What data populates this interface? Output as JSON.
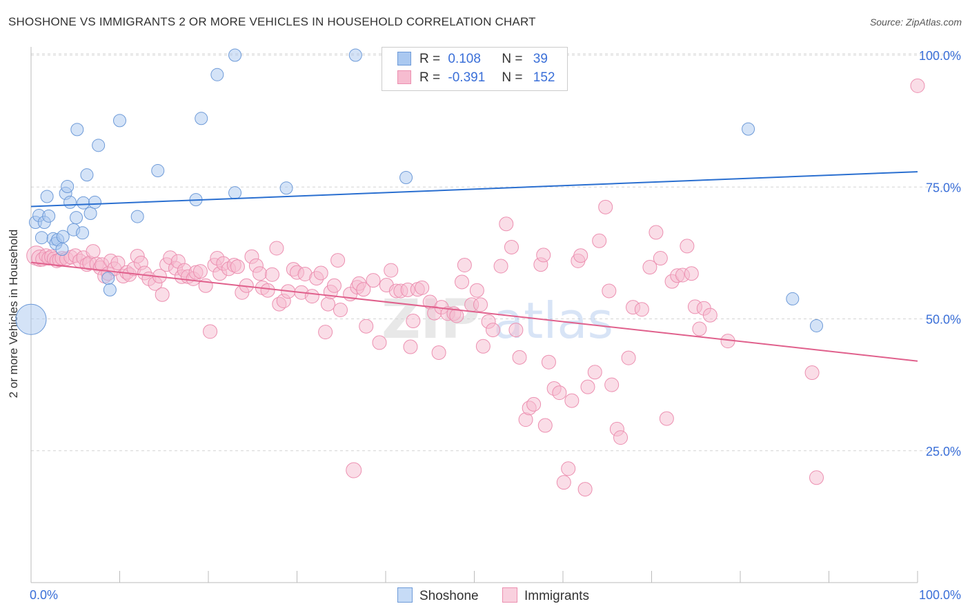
{
  "title": "SHOSHONE VS IMMIGRANTS 2 OR MORE VEHICLES IN HOUSEHOLD CORRELATION CHART",
  "source": "Source: ZipAtlas.com",
  "legend": {
    "r_label": "R =",
    "n_label": "N =",
    "shoshone": {
      "r": "0.108",
      "n": "39"
    },
    "immigrants": {
      "r": "-0.391",
      "n": "152"
    }
  },
  "bottom_legend": {
    "shoshone": "Shoshone",
    "immigrants": "Immigrants"
  },
  "watermark": {
    "zip": "ZIP",
    "atlas": "atlas"
  },
  "chart_data": {
    "type": "scatter",
    "title": "SHOSHONE VS IMMIGRANTS 2 OR MORE VEHICLES IN HOUSEHOLD CORRELATION CHART",
    "xlabel": "",
    "ylabel": "2 or more Vehicles in Household",
    "xlim": [
      0,
      100
    ],
    "ylim": [
      0,
      102.5
    ],
    "x_tick_labels": [
      "0.0%",
      "100.0%"
    ],
    "y_ticks": [
      25,
      50,
      75,
      100
    ],
    "y_tick_labels": [
      "25.0%",
      "50.0%",
      "75.0%",
      "100.0%"
    ],
    "grid": "dashed horizontal",
    "legend_position": "top-center",
    "colors": {
      "shoshone_fill": "#aac8f0",
      "shoshone_stroke": "#6d9ad8",
      "shoshone_line": "#2a6fd0",
      "immigrants_fill": "#f6bcd0",
      "immigrants_stroke": "#ec8fb0",
      "immigrants_line": "#e0608c",
      "tick_label": "#3a6fd8"
    },
    "series": [
      {
        "name": "Shoshone",
        "trend": [
          [
            0,
            71.3
          ],
          [
            100,
            77.9
          ]
        ],
        "points": [
          [
            0.0,
            49.9,
            22
          ],
          [
            0.5,
            68.3,
            9
          ],
          [
            0.9,
            69.6,
            9
          ],
          [
            1.2,
            65.4,
            9
          ],
          [
            1.5,
            68.3,
            9
          ],
          [
            1.8,
            73.2,
            9
          ],
          [
            2.0,
            69.5,
            9
          ],
          [
            2.5,
            65.2,
            9
          ],
          [
            2.8,
            64.3,
            9
          ],
          [
            3.0,
            65.0,
            9
          ],
          [
            3.5,
            63.2,
            9
          ],
          [
            3.6,
            65.6,
            9
          ],
          [
            3.9,
            73.8,
            9
          ],
          [
            4.1,
            75.1,
            9
          ],
          [
            4.4,
            72.1,
            9
          ],
          [
            4.8,
            66.9,
            9
          ],
          [
            5.1,
            69.2,
            9
          ],
          [
            5.2,
            85.9,
            9
          ],
          [
            5.8,
            66.3,
            9
          ],
          [
            5.9,
            72.0,
            9
          ],
          [
            6.3,
            77.3,
            9
          ],
          [
            6.7,
            70.0,
            9
          ],
          [
            7.2,
            72.1,
            9
          ],
          [
            7.6,
            82.9,
            9
          ],
          [
            8.7,
            57.7,
            9
          ],
          [
            8.9,
            55.5,
            9
          ],
          [
            10.0,
            87.6,
            9
          ],
          [
            12.0,
            69.4,
            9
          ],
          [
            14.3,
            78.1,
            9
          ],
          [
            18.6,
            72.6,
            9
          ],
          [
            19.2,
            88.0,
            9
          ],
          [
            21.0,
            96.3,
            9
          ],
          [
            23.0,
            100.0,
            9
          ],
          [
            23.0,
            73.9,
            9
          ],
          [
            28.8,
            74.8,
            9
          ],
          [
            36.6,
            100.0,
            9
          ],
          [
            42.3,
            76.8,
            9
          ],
          [
            80.9,
            86.0,
            9
          ],
          [
            85.9,
            53.8,
            9
          ],
          [
            88.6,
            48.7,
            9
          ]
        ]
      },
      {
        "name": "Immigrants",
        "trend": [
          [
            0,
            60.7
          ],
          [
            100,
            42.0
          ]
        ],
        "points": [
          [
            0.6,
            62.0,
            14
          ],
          [
            1.0,
            61.5,
            12
          ],
          [
            1.3,
            61.3,
            10
          ],
          [
            1.7,
            62.0,
            10
          ],
          [
            2.0,
            61.5,
            10
          ],
          [
            2.3,
            61.8,
            10
          ],
          [
            2.6,
            61.4,
            10
          ],
          [
            2.9,
            61.0,
            10
          ],
          [
            3.2,
            61.2,
            10
          ],
          [
            3.5,
            61.5,
            10
          ],
          [
            4.0,
            61.4,
            10
          ],
          [
            4.5,
            61.7,
            10
          ],
          [
            5.0,
            62.0,
            10
          ],
          [
            5.5,
            61.0,
            10
          ],
          [
            5.9,
            61.6,
            10
          ],
          [
            6.3,
            60.3,
            10
          ],
          [
            6.6,
            60.6,
            10
          ],
          [
            7.0,
            62.8,
            10
          ],
          [
            7.4,
            60.4,
            10
          ],
          [
            7.8,
            59.7,
            10
          ],
          [
            8.0,
            60.3,
            10
          ],
          [
            8.3,
            58.1,
            10
          ],
          [
            8.7,
            58.6,
            10
          ],
          [
            9.0,
            61.0,
            10
          ],
          [
            9.4,
            59.5,
            10
          ],
          [
            9.8,
            60.6,
            10
          ],
          [
            10.4,
            58.1,
            10
          ],
          [
            10.8,
            58.8,
            10
          ],
          [
            11.1,
            58.4,
            10
          ],
          [
            11.6,
            59.5,
            10
          ],
          [
            12.0,
            61.9,
            10
          ],
          [
            12.4,
            60.6,
            10
          ],
          [
            12.8,
            58.7,
            10
          ],
          [
            13.3,
            57.6,
            10
          ],
          [
            14.0,
            56.7,
            10
          ],
          [
            14.5,
            58.1,
            10
          ],
          [
            14.8,
            54.6,
            10
          ],
          [
            15.3,
            60.3,
            10
          ],
          [
            15.7,
            61.6,
            10
          ],
          [
            16.3,
            59.6,
            10
          ],
          [
            16.6,
            60.9,
            10
          ],
          [
            17.0,
            58.0,
            10
          ],
          [
            17.3,
            59.2,
            10
          ],
          [
            17.7,
            58.0,
            10
          ],
          [
            18.3,
            57.6,
            10
          ],
          [
            18.6,
            58.8,
            10
          ],
          [
            19.1,
            59.0,
            10
          ],
          [
            19.7,
            56.3,
            10
          ],
          [
            20.2,
            47.6,
            10
          ],
          [
            20.7,
            60.2,
            10
          ],
          [
            21.0,
            61.5,
            10
          ],
          [
            21.3,
            58.6,
            10
          ],
          [
            21.7,
            60.5,
            10
          ],
          [
            22.3,
            59.5,
            10
          ],
          [
            22.9,
            60.2,
            10
          ],
          [
            23.3,
            59.9,
            10
          ],
          [
            23.8,
            55.0,
            10
          ],
          [
            24.3,
            56.3,
            10
          ],
          [
            24.9,
            61.8,
            10
          ],
          [
            25.4,
            60.1,
            10
          ],
          [
            25.8,
            58.6,
            10
          ],
          [
            26.1,
            55.9,
            10
          ],
          [
            26.7,
            55.4,
            10
          ],
          [
            27.2,
            58.4,
            10
          ],
          [
            27.7,
            63.4,
            10
          ],
          [
            28.0,
            52.8,
            10
          ],
          [
            28.5,
            53.4,
            10
          ],
          [
            29.0,
            55.2,
            10
          ],
          [
            29.6,
            59.4,
            10
          ],
          [
            30.0,
            58.8,
            10
          ],
          [
            30.5,
            55.0,
            10
          ],
          [
            30.9,
            58.5,
            10
          ],
          [
            31.7,
            54.3,
            10
          ],
          [
            32.2,
            57.7,
            10
          ],
          [
            32.7,
            58.7,
            10
          ],
          [
            33.2,
            47.5,
            10
          ],
          [
            33.5,
            52.8,
            10
          ],
          [
            33.8,
            55.1,
            10
          ],
          [
            34.2,
            56.3,
            10
          ],
          [
            34.6,
            61.1,
            10
          ],
          [
            34.9,
            51.7,
            10
          ],
          [
            36.0,
            54.7,
            10
          ],
          [
            36.8,
            56.0,
            10
          ],
          [
            37.0,
            56.7,
            10
          ],
          [
            37.5,
            55.6,
            10
          ],
          [
            37.8,
            48.6,
            10
          ],
          [
            38.6,
            57.3,
            10
          ],
          [
            39.3,
            45.5,
            10
          ],
          [
            40.1,
            56.4,
            10
          ],
          [
            40.6,
            59.2,
            10
          ],
          [
            41.2,
            55.3,
            10
          ],
          [
            41.7,
            55.3,
            10
          ],
          [
            42.5,
            55.5,
            10
          ],
          [
            42.8,
            44.7,
            10
          ],
          [
            43.1,
            49.6,
            10
          ],
          [
            43.6,
            55.6,
            10
          ],
          [
            44.1,
            55.9,
            10
          ],
          [
            45.0,
            53.2,
            10
          ],
          [
            45.5,
            51.1,
            10
          ],
          [
            46.0,
            43.6,
            10
          ],
          [
            46.3,
            52.2,
            10
          ],
          [
            47.0,
            51.0,
            10
          ],
          [
            47.7,
            51.0,
            10
          ],
          [
            48.0,
            50.6,
            10
          ],
          [
            48.6,
            57.0,
            10
          ],
          [
            48.9,
            60.2,
            10
          ],
          [
            49.7,
            52.7,
            10
          ],
          [
            50.3,
            55.4,
            10
          ],
          [
            50.7,
            52.7,
            10
          ],
          [
            51.0,
            44.8,
            10
          ],
          [
            51.6,
            49.5,
            10
          ],
          [
            52.1,
            47.9,
            10
          ],
          [
            53.0,
            60.0,
            10
          ],
          [
            53.6,
            68.0,
            10
          ],
          [
            54.2,
            63.6,
            10
          ],
          [
            54.7,
            47.9,
            10
          ],
          [
            55.1,
            42.7,
            10
          ],
          [
            55.8,
            30.9,
            10
          ],
          [
            56.2,
            33.1,
            10
          ],
          [
            56.7,
            33.8,
            10
          ],
          [
            57.5,
            60.3,
            10
          ],
          [
            57.8,
            62.1,
            10
          ],
          [
            58.0,
            29.8,
            10
          ],
          [
            58.4,
            41.8,
            10
          ],
          [
            59.0,
            36.8,
            10
          ],
          [
            59.6,
            36.0,
            10
          ],
          [
            60.1,
            19.0,
            10
          ],
          [
            60.6,
            21.6,
            10
          ],
          [
            61.0,
            34.5,
            10
          ],
          [
            61.7,
            61.0,
            10
          ],
          [
            62.0,
            62.0,
            10
          ],
          [
            62.5,
            17.7,
            10
          ],
          [
            62.8,
            37.1,
            10
          ],
          [
            63.6,
            39.9,
            10
          ],
          [
            64.1,
            64.8,
            10
          ],
          [
            64.8,
            71.2,
            10
          ],
          [
            65.2,
            55.3,
            10
          ],
          [
            65.5,
            37.5,
            10
          ],
          [
            66.1,
            29.1,
            10
          ],
          [
            66.5,
            27.5,
            10
          ],
          [
            67.4,
            42.6,
            10
          ],
          [
            67.9,
            52.2,
            10
          ],
          [
            68.9,
            51.8,
            10
          ],
          [
            69.8,
            59.8,
            10
          ],
          [
            70.5,
            66.4,
            10
          ],
          [
            71.0,
            61.5,
            10
          ],
          [
            71.7,
            31.1,
            10
          ],
          [
            72.3,
            57.1,
            10
          ],
          [
            72.9,
            58.2,
            10
          ],
          [
            73.5,
            58.3,
            10
          ],
          [
            74.0,
            63.8,
            10
          ],
          [
            74.5,
            58.6,
            10
          ],
          [
            74.9,
            52.3,
            10
          ],
          [
            75.4,
            48.1,
            10
          ],
          [
            75.9,
            52.0,
            10
          ],
          [
            76.6,
            50.7,
            10
          ],
          [
            78.6,
            45.8,
            10
          ],
          [
            88.1,
            39.8,
            10
          ],
          [
            88.6,
            19.9,
            10
          ],
          [
            100.0,
            94.2,
            10
          ],
          [
            36.4,
            21.3,
            11
          ]
        ]
      }
    ]
  }
}
